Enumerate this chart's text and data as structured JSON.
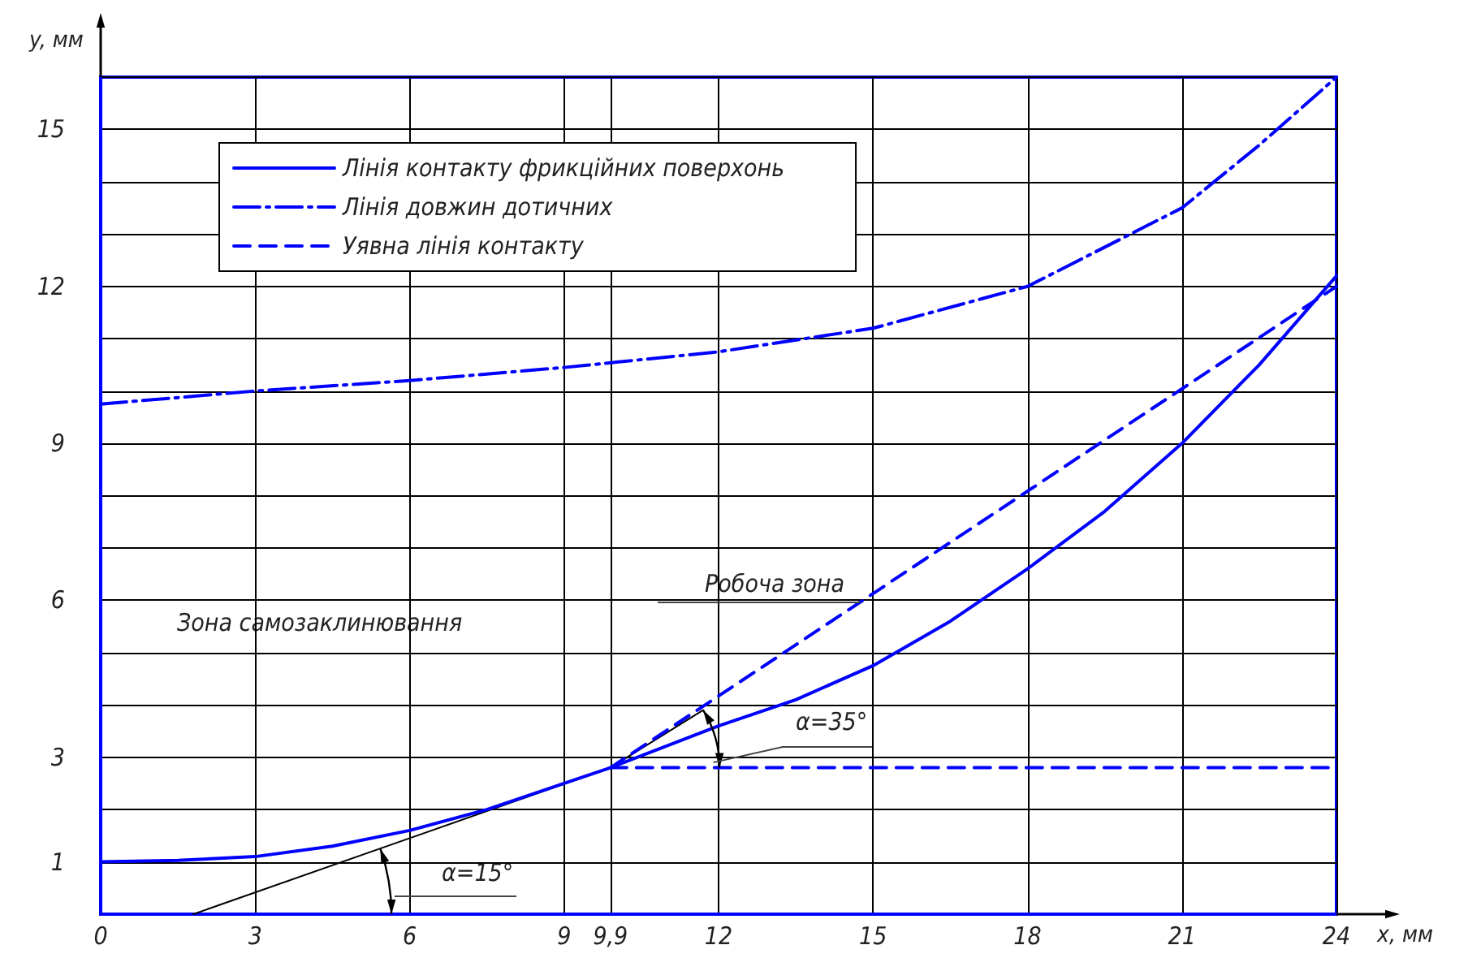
{
  "chart_data": {
    "type": "line",
    "xlabel": "x, мм",
    "ylabel": "y, мм",
    "xlim": [
      0,
      24
    ],
    "xticks": [
      0,
      3,
      6,
      9,
      {
        "value": 9.9,
        "label": "9,9"
      },
      12,
      15,
      18,
      21,
      24
    ],
    "ylim": [
      0,
      16
    ],
    "yticks": [
      {
        "value": 0,
        "label": null
      },
      1,
      {
        "value": 2,
        "label": null
      },
      3,
      {
        "value": 4,
        "label": null
      },
      {
        "value": 5,
        "label": null
      },
      6,
      {
        "value": 7,
        "label": null
      },
      {
        "value": 8,
        "label": null
      },
      9,
      {
        "value": 10,
        "label": null
      },
      {
        "value": 11,
        "label": null
      },
      12,
      {
        "value": 13,
        "label": null
      },
      {
        "value": 14,
        "label": null
      },
      15,
      {
        "value": 16,
        "label": null
      }
    ],
    "grid": true,
    "legend": "top left",
    "marker": "none",
    "series": [
      {
        "name": "Лінія контакту фрикційних поверхонь",
        "color": "#0000ff",
        "line_style": "solid",
        "x": [
          0,
          1.5,
          3,
          4.5,
          6,
          7.5,
          9,
          9.9,
          12,
          13.5,
          15,
          16.5,
          18,
          19.5,
          21,
          22.5,
          24
        ],
        "values": [
          1.0,
          1.03,
          1.1,
          1.3,
          1.6,
          2.0,
          2.5,
          2.8,
          3.6,
          4.1,
          4.75,
          5.6,
          6.6,
          7.7,
          9.0,
          10.5,
          12.2
        ]
      },
      {
        "name": "Лінія довжин дотичних",
        "color": "#0000ff",
        "line_style": "dashdot",
        "x": [
          0,
          3,
          6,
          9,
          12,
          15,
          18,
          21,
          22.5,
          24
        ],
        "values": [
          9.75,
          10.0,
          10.2,
          10.45,
          10.75,
          11.2,
          12.0,
          13.5,
          14.7,
          16.0
        ]
      },
      {
        "name": "Уявна лінія контакту",
        "color": "#0000ff",
        "line_style": "dashed",
        "x": [
          9.9,
          24
        ],
        "values": [
          2.8,
          12.0
        ]
      },
      {
        "color": "#0000ff",
        "line_style": "dashed",
        "x": [
          9.9,
          24
        ],
        "values": [
          2.8,
          2.8
        ]
      },
      {
        "color": "#000000",
        "line_style": "solid",
        "x": [
          1.8,
          9.9,
          11.7
        ],
        "values": [
          0,
          2.8,
          3.9
        ]
      }
    ],
    "annotations": [
      "Зона самозаклинювання",
      "Робоча зона",
      "α=15°",
      {
        "text": "α=35°",
        "x": 11.9,
        "y": 2.9
      }
    ]
  }
}
